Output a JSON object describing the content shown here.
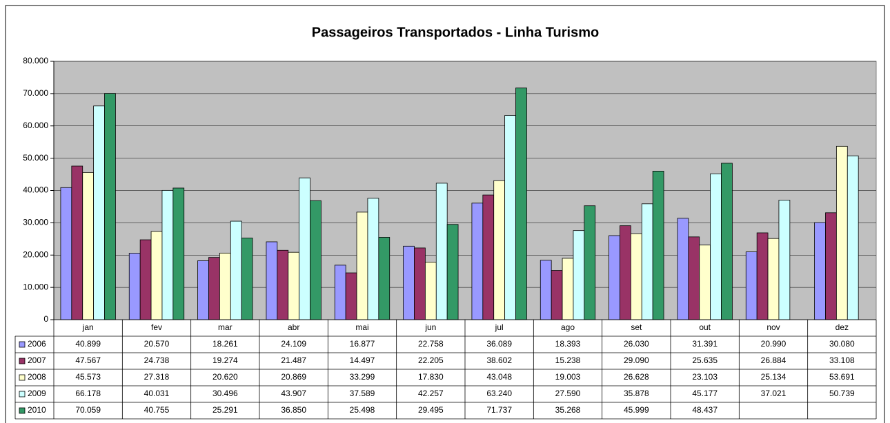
{
  "chart_data": {
    "type": "bar",
    "title": "Passageiros Transportados - Linha Turismo",
    "categories": [
      "jan",
      "fev",
      "mar",
      "abr",
      "mai",
      "jun",
      "jul",
      "ago",
      "set",
      "out",
      "nov",
      "dez"
    ],
    "series": [
      {
        "name": "2006",
        "color": "#9999ff",
        "values": [
          40899,
          20570,
          18261,
          24109,
          16877,
          22758,
          36089,
          18393,
          26030,
          31391,
          20990,
          30080
        ],
        "value_labels": [
          "40.899",
          "20.570",
          "18.261",
          "24.109",
          "16.877",
          "22.758",
          "36.089",
          "18.393",
          "26.030",
          "31.391",
          "20.990",
          "30.080"
        ]
      },
      {
        "name": "2007",
        "color": "#993366",
        "values": [
          47567,
          24738,
          19274,
          21487,
          14497,
          22205,
          38602,
          15238,
          29090,
          25635,
          26884,
          33108
        ],
        "value_labels": [
          "47.567",
          "24.738",
          "19.274",
          "21.487",
          "14.497",
          "22.205",
          "38.602",
          "15.238",
          "29.090",
          "25.635",
          "26.884",
          "33.108"
        ]
      },
      {
        "name": "2008",
        "color": "#ffffcc",
        "values": [
          45573,
          27318,
          20620,
          20869,
          33299,
          17830,
          43048,
          19003,
          26628,
          23103,
          25134,
          53691
        ],
        "value_labels": [
          "45.573",
          "27.318",
          "20.620",
          "20.869",
          "33.299",
          "17.830",
          "43.048",
          "19.003",
          "26.628",
          "23.103",
          "25.134",
          "53.691"
        ]
      },
      {
        "name": "2009",
        "color": "#ccffff",
        "values": [
          66178,
          40031,
          30496,
          43907,
          37589,
          42257,
          63240,
          27590,
          35878,
          45177,
          37021,
          50739
        ],
        "value_labels": [
          "66.178",
          "40.031",
          "30.496",
          "43.907",
          "37.589",
          "42.257",
          "63.240",
          "27.590",
          "35.878",
          "45.177",
          "37.021",
          "50.739"
        ]
      },
      {
        "name": "2010",
        "color": "#339966",
        "values": [
          70059,
          40755,
          25291,
          36850,
          25498,
          29495,
          71737,
          35268,
          45999,
          48437,
          null,
          null
        ],
        "value_labels": [
          "70.059",
          "40.755",
          "25.291",
          "36.850",
          "25.498",
          "29.495",
          "71.737",
          "35.268",
          "45.999",
          "48.437",
          null,
          null
        ]
      }
    ],
    "ylim": [
      0,
      80000
    ],
    "yticks": [
      0,
      {
        "value": 10000,
        "label": "10.000"
      },
      {
        "value": 20000,
        "label": "20.000"
      },
      {
        "value": 30000,
        "label": "30.000"
      },
      {
        "value": 40000,
        "label": "40.000"
      },
      {
        "value": 50000,
        "label": "50.000"
      },
      {
        "value": 60000,
        "label": "60.000"
      },
      {
        "value": 70000,
        "label": "70.000"
      },
      {
        "value": 80000,
        "label": "80.000"
      }
    ],
    "grid": true,
    "plot_background": "#c0c0c0"
  }
}
